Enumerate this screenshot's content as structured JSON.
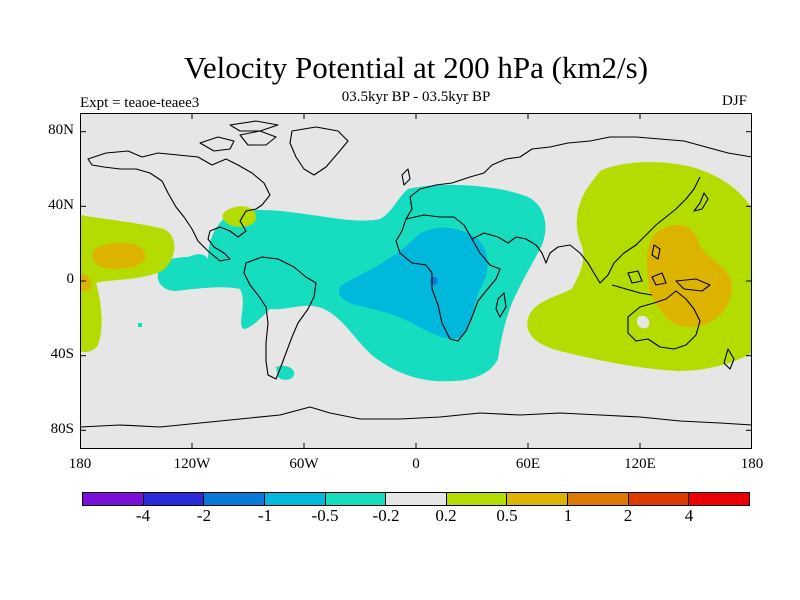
{
  "title": "Velocity Potential at 200 hPa (km2/s)",
  "subtitle": "03.5kyr BP - 03.5kyr BP",
  "experiment": "Expt = teaoe-teaee3",
  "season": "DJF",
  "map": {
    "projection": "cylindrical equidistant",
    "background_color": "#e6e6e6",
    "lat_labels": [
      "80N",
      "40N",
      "0",
      "40S",
      "80S"
    ],
    "lon_labels": [
      "180",
      "120W",
      "60W",
      "0",
      "60E",
      "120E",
      "180"
    ]
  },
  "colorbar": {
    "colors": [
      "#7a10d8",
      "#2a2ad8",
      "#0a7ad8",
      "#00b8dc",
      "#16dcc0",
      "#e6e6e6",
      "#b4dc00",
      "#dcb400",
      "#dc7a00",
      "#dc3c00",
      "#ec0000"
    ],
    "labels": [
      "-4",
      "-2",
      "-1",
      "-0.5",
      "-0.2",
      "0.2",
      "0.5",
      "1",
      "2",
      "4"
    ]
  }
}
